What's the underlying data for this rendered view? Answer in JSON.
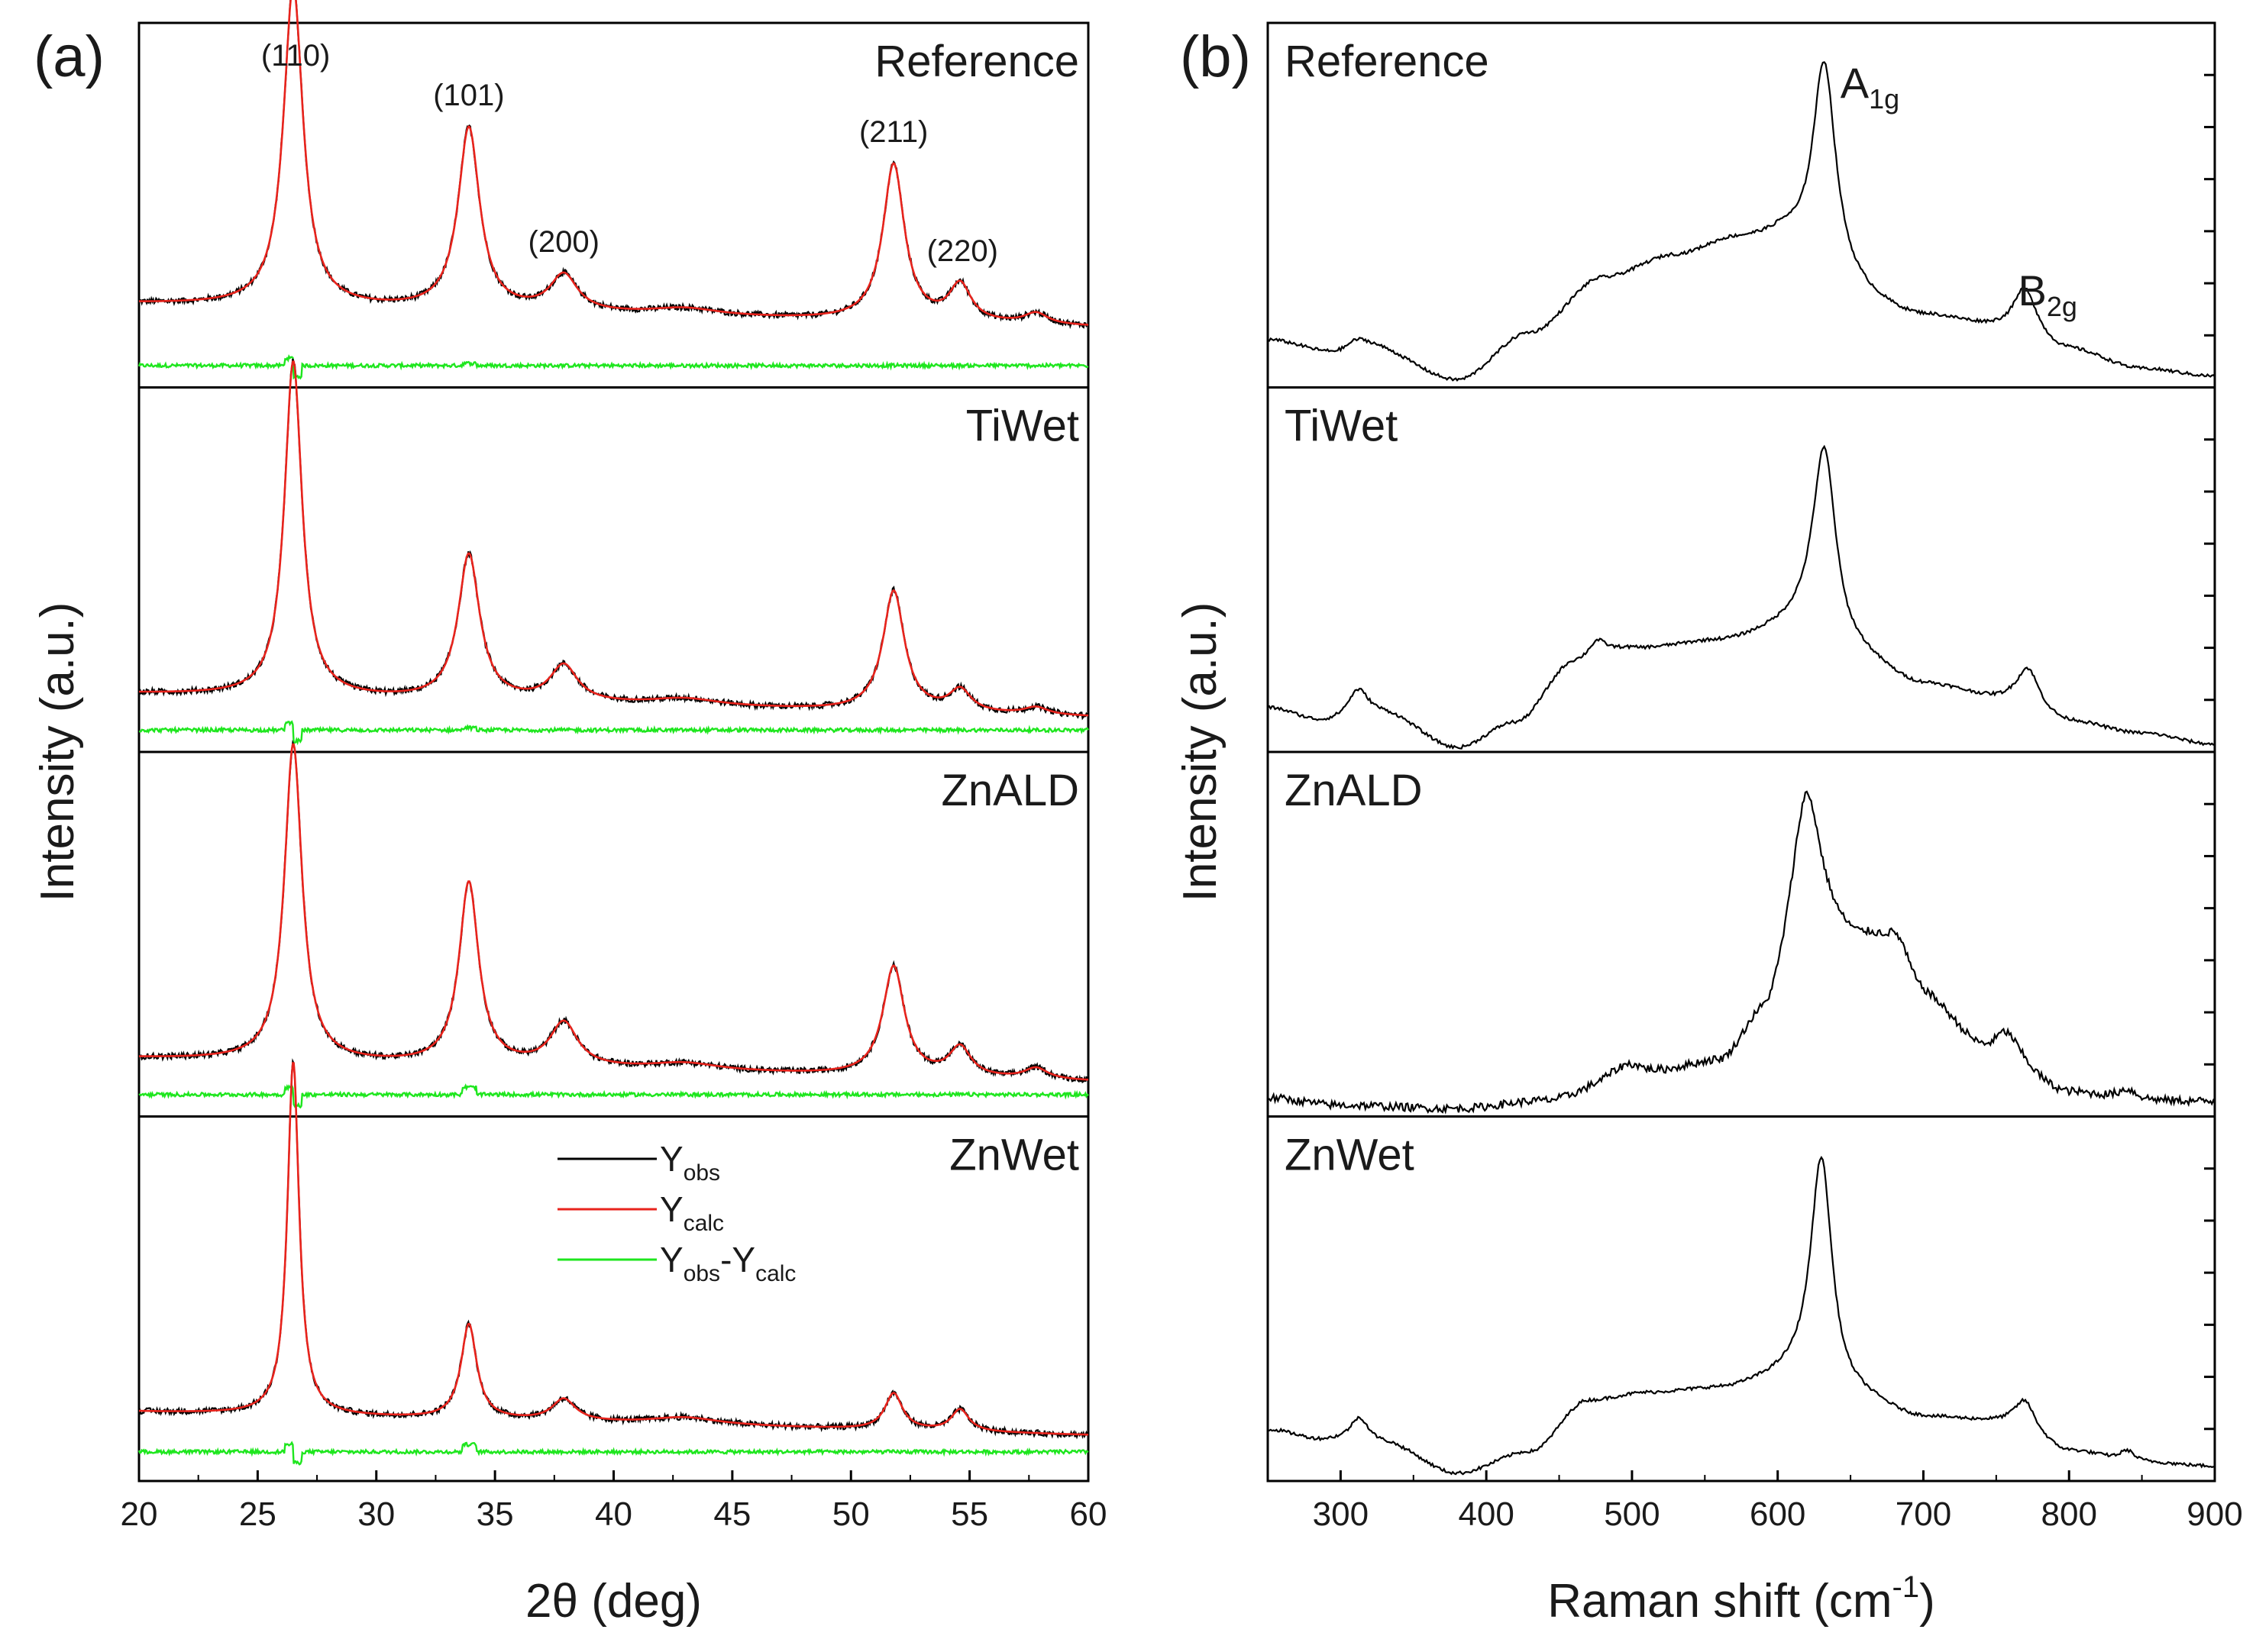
{
  "panels": {
    "a": {
      "letter": "(a)",
      "xlabel": "2θ (deg)",
      "ylabel": "Intensity (a.u.)",
      "legend": [
        {
          "main": "Y",
          "sub": "obs",
          "tail": "",
          "tail_sub": "",
          "color": "#000000"
        },
        {
          "main": "Y",
          "sub": "calc",
          "tail": "",
          "tail_sub": "",
          "color": "#e8231c"
        },
        {
          "main": "Y",
          "sub": "obs",
          "tail": "-Y",
          "tail_sub": "calc",
          "color": "#1ee61e"
        }
      ],
      "peak_labels": [
        {
          "text": "(110)",
          "x": 26.6
        },
        {
          "text": "(101)",
          "x": 33.9
        },
        {
          "text": "(200)",
          "x": 37.9
        },
        {
          "text": "(211)",
          "x": 51.8
        },
        {
          "text": "(220)",
          "x": 54.7
        }
      ]
    },
    "b": {
      "letter": "(b)",
      "xlabel": "Raman shift (cm",
      "xlabel_sup": "-1",
      "xlabel_end": ")",
      "ylabel": "Intensity (a.u.)",
      "mode_labels": [
        {
          "main": "A",
          "sub": "1g",
          "x": 643
        },
        {
          "main": "B",
          "sub": "2g",
          "x": 765
        }
      ]
    }
  },
  "colors": {
    "obs": "#000000",
    "calc": "#e8231c",
    "diff": "#1ee61e",
    "axis": "#000000"
  },
  "chart_data": [
    {
      "type": "line",
      "title": "",
      "xlabel": "2θ (deg)",
      "ylabel": "Intensity (a.u.)",
      "xlim": [
        20,
        60
      ],
      "xticks": [
        20,
        25,
        30,
        35,
        40,
        45,
        50,
        55,
        60
      ],
      "yticks_labeled": false,
      "legend_position": "inside bottom panel, upper-middle",
      "subplots": [
        {
          "name": "Reference",
          "base": 0.23,
          "diff_level": 0.06,
          "peaks": [
            {
              "x": 26.5,
              "h": 0.88,
              "w": 0.5
            },
            {
              "x": 33.9,
              "h": 0.5,
              "w": 0.55
            },
            {
              "x": 37.9,
              "h": 0.1,
              "w": 0.7
            },
            {
              "x": 51.8,
              "h": 0.43,
              "w": 0.55
            },
            {
              "x": 54.6,
              "h": 0.1,
              "w": 0.55
            },
            {
              "x": 57.8,
              "h": 0.03,
              "w": 0.6
            }
          ]
        },
        {
          "name": "TiWet",
          "base": 0.16,
          "diff_level": 0.06,
          "peaks": [
            {
              "x": 26.5,
              "h": 0.92,
              "w": 0.45
            },
            {
              "x": 33.9,
              "h": 0.4,
              "w": 0.55
            },
            {
              "x": 37.9,
              "h": 0.1,
              "w": 0.7
            },
            {
              "x": 51.8,
              "h": 0.33,
              "w": 0.55
            },
            {
              "x": 54.6,
              "h": 0.06,
              "w": 0.55
            },
            {
              "x": 57.8,
              "h": 0.02,
              "w": 0.6
            }
          ]
        },
        {
          "name": "ZnALD",
          "base": 0.16,
          "diff_level": 0.06,
          "peaks": [
            {
              "x": 26.5,
              "h": 0.87,
              "w": 0.45
            },
            {
              "x": 33.9,
              "h": 0.5,
              "w": 0.5
            },
            {
              "x": 37.9,
              "h": 0.12,
              "w": 0.7
            },
            {
              "x": 51.8,
              "h": 0.3,
              "w": 0.55
            },
            {
              "x": 54.6,
              "h": 0.08,
              "w": 0.55
            },
            {
              "x": 57.8,
              "h": 0.03,
              "w": 0.6
            }
          ]
        },
        {
          "name": "ZnWet",
          "base": 0.19,
          "diff_level": 0.08,
          "peaks": [
            {
              "x": 26.5,
              "h": 0.97,
              "w": 0.3
            },
            {
              "x": 33.9,
              "h": 0.26,
              "w": 0.4
            },
            {
              "x": 37.9,
              "h": 0.06,
              "w": 0.6
            },
            {
              "x": 51.8,
              "h": 0.1,
              "w": 0.45
            },
            {
              "x": 54.6,
              "h": 0.06,
              "w": 0.45
            }
          ]
        }
      ]
    },
    {
      "type": "line",
      "title": "",
      "xlabel": "Raman shift (cm-1)",
      "ylabel": "Intensity (a.u.)",
      "xlim": [
        250,
        900
      ],
      "xticks": [
        300,
        400,
        500,
        600,
        700,
        800,
        900
      ],
      "xtick_labels": [
        "300",
        "400",
        "500",
        "600",
        "700",
        "800",
        "900"
      ],
      "yticks_labeled": false,
      "subplots": [
        {
          "name": "Reference",
          "baseline": [
            [
              250,
              0.13
            ],
            [
              300,
              0.09
            ],
            [
              320,
              0.11
            ],
            [
              380,
              0.02
            ],
            [
              430,
              0.15
            ],
            [
              480,
              0.3
            ],
            [
              530,
              0.36
            ],
            [
              570,
              0.4
            ],
            [
              600,
              0.4
            ],
            [
              640,
              0.25
            ],
            [
              700,
              0.19
            ],
            [
              760,
              0.16
            ],
            [
              800,
              0.1
            ],
            [
              850,
              0.05
            ],
            [
              900,
              0.03
            ]
          ],
          "peaks": [
            {
              "x": 632,
              "h": 0.63,
              "w": 10
            },
            {
              "x": 770,
              "h": 0.12,
              "w": 9
            },
            {
              "x": 310,
              "h": 0.03,
              "w": 10
            }
          ]
        },
        {
          "name": "TiWet",
          "baseline": [
            [
              250,
              0.12
            ],
            [
              290,
              0.08
            ],
            [
              330,
              0.1
            ],
            [
              380,
              0.01
            ],
            [
              420,
              0.08
            ],
            [
              460,
              0.24
            ],
            [
              500,
              0.28
            ],
            [
              560,
              0.3
            ],
            [
              610,
              0.33
            ],
            [
              650,
              0.25
            ],
            [
              700,
              0.18
            ],
            [
              760,
              0.14
            ],
            [
              800,
              0.08
            ],
            [
              850,
              0.05
            ],
            [
              900,
              0.02
            ]
          ],
          "peaks": [
            {
              "x": 632,
              "h": 0.55,
              "w": 10
            },
            {
              "x": 772,
              "h": 0.1,
              "w": 9
            },
            {
              "x": 312,
              "h": 0.08,
              "w": 9
            },
            {
              "x": 476,
              "h": 0.05,
              "w": 8
            }
          ]
        },
        {
          "name": "ZnALD",
          "baseline": [
            [
              250,
              0.05
            ],
            [
              300,
              0.03
            ],
            [
              380,
              0.02
            ],
            [
              440,
              0.04
            ],
            [
              500,
              0.1
            ],
            [
              560,
              0.14
            ],
            [
              590,
              0.25
            ],
            [
              620,
              0.5
            ],
            [
              660,
              0.45
            ],
            [
              700,
              0.3
            ],
            [
              750,
              0.15
            ],
            [
              800,
              0.06
            ],
            [
              850,
              0.04
            ],
            [
              900,
              0.04
            ]
          ],
          "peaks": [
            {
              "x": 620,
              "h": 0.38,
              "w": 12
            },
            {
              "x": 683,
              "h": 0.12,
              "w": 12
            },
            {
              "x": 757,
              "h": 0.08,
              "w": 12
            },
            {
              "x": 840,
              "h": 0.03,
              "w": 8
            },
            {
              "x": 498,
              "h": 0.04,
              "w": 15
            }
          ]
        },
        {
          "name": "ZnWet",
          "baseline": [
            [
              250,
              0.14
            ],
            [
              290,
              0.11
            ],
            [
              330,
              0.1
            ],
            [
              380,
              0.02
            ],
            [
              430,
              0.08
            ],
            [
              470,
              0.22
            ],
            [
              510,
              0.24
            ],
            [
              560,
              0.25
            ],
            [
              610,
              0.28
            ],
            [
              650,
              0.22
            ],
            [
              700,
              0.17
            ],
            [
              760,
              0.16
            ],
            [
              800,
              0.08
            ],
            [
              850,
              0.05
            ],
            [
              900,
              0.04
            ]
          ],
          "peaks": [
            {
              "x": 630,
              "h": 0.64,
              "w": 9
            },
            {
              "x": 770,
              "h": 0.07,
              "w": 8
            },
            {
              "x": 313,
              "h": 0.07,
              "w": 8
            },
            {
              "x": 840,
              "h": 0.03,
              "w": 6
            }
          ]
        }
      ]
    }
  ]
}
